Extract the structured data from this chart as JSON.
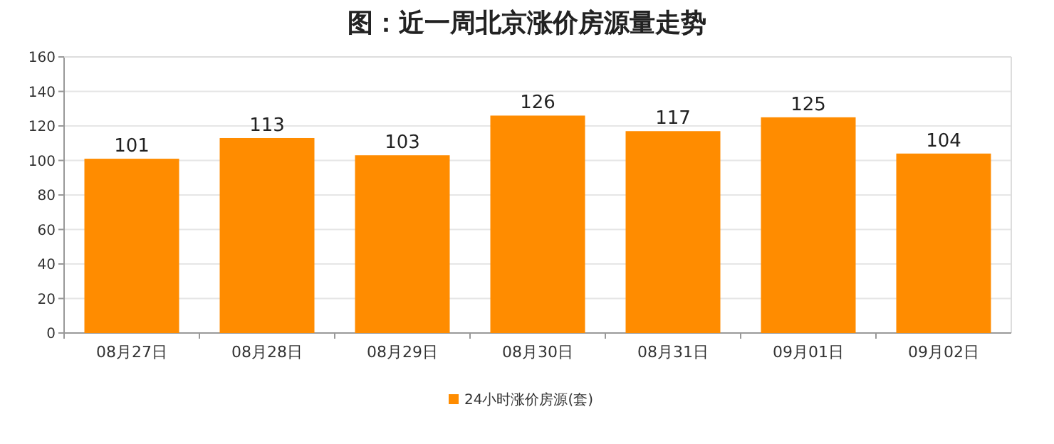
{
  "chart_data": {
    "type": "bar",
    "title": "图：近一周北京涨价房源量走势",
    "categories": [
      "08月27日",
      "08月28日",
      "08月29日",
      "08月30日",
      "08月31日",
      "09月01日",
      "09月02日"
    ],
    "series": [
      {
        "name": "24小时涨价房源(套)",
        "color": "#ff8c00",
        "values": [
          101,
          113,
          103,
          126,
          117,
          125,
          104
        ]
      }
    ],
    "ylim": [
      0,
      160
    ],
    "yticks": [
      0,
      20,
      40,
      60,
      80,
      100,
      120,
      140,
      160
    ],
    "grid": "y",
    "legend": "bottom",
    "data_labels": true
  }
}
